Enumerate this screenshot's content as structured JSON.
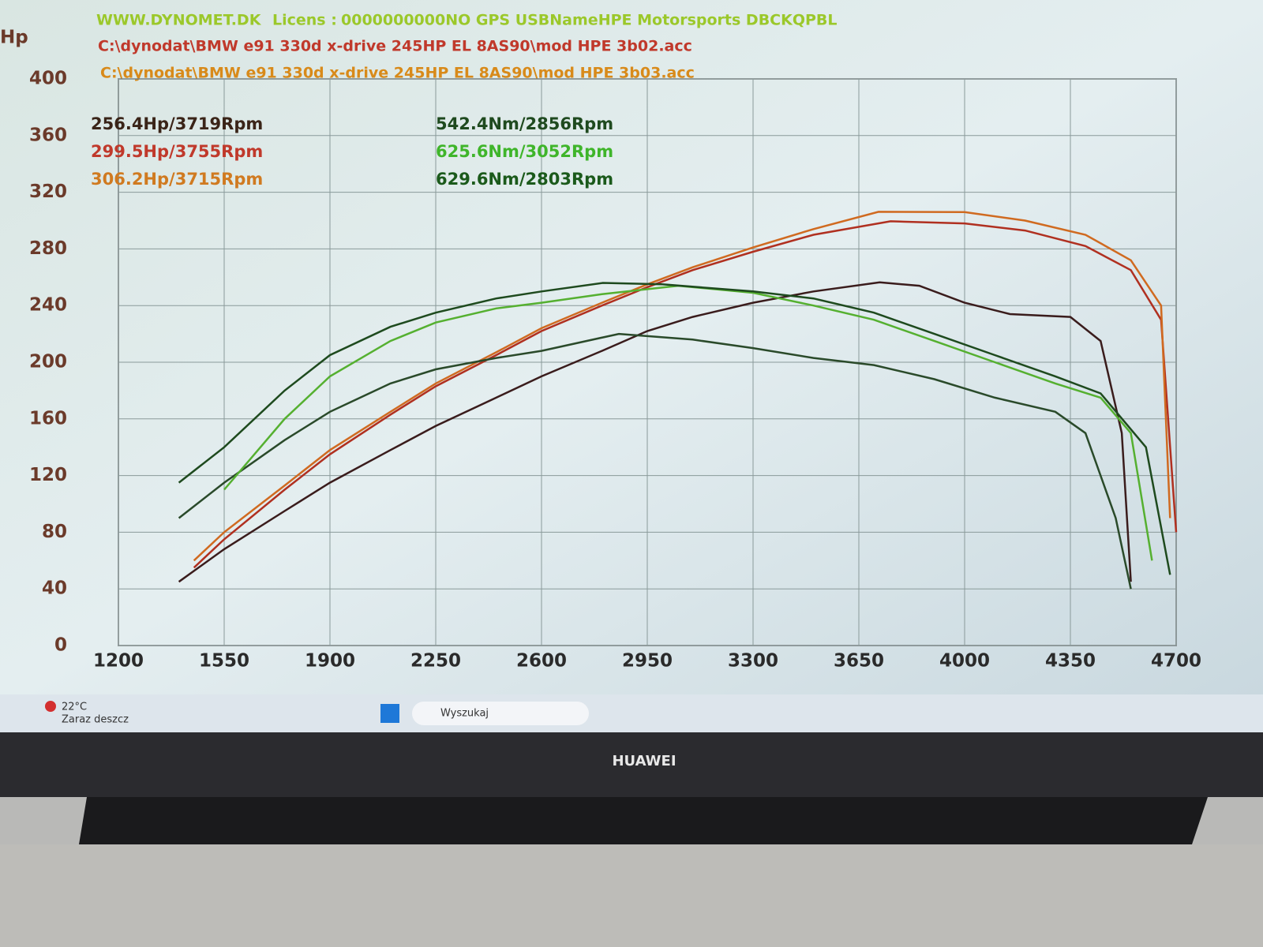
{
  "header": {
    "site": "WWW.DYNOMET.DK",
    "license_label": "Licens :",
    "license": "0000000000NO GPS USBNameHPE Motorsports  DBCKQPBL",
    "files": [
      "C:\\dynodat\\BMW e91 330d x-drive 245HP EL 8AS90\\mod HPE 3b02.acc",
      "C:\\dynodat\\BMW e91 330d x-drive 245HP EL 8AS90\\mod HPE 3b03.acc"
    ]
  },
  "chart_data": {
    "type": "line",
    "y_label": "Hp",
    "xlim": [
      1200,
      4700
    ],
    "ylim": [
      0,
      400
    ],
    "xticks": [
      1200,
      1550,
      1900,
      2250,
      2600,
      2950,
      3300,
      3650,
      4000,
      4350,
      4700
    ],
    "yticks": [
      0,
      40,
      80,
      120,
      160,
      200,
      240,
      280,
      320,
      360,
      400
    ],
    "grid": true,
    "series": [
      {
        "name": "256.4Hp/3719Rpm",
        "color": "#3a1c1c",
        "label_color": "#3a2418",
        "x": [
          1400,
          1550,
          1750,
          1900,
          2100,
          2250,
          2450,
          2600,
          2800,
          2950,
          3100,
          3300,
          3500,
          3719,
          3850,
          4000,
          4150,
          4350,
          4450,
          4520,
          4550
        ],
        "values": [
          45,
          68,
          95,
          115,
          138,
          155,
          175,
          190,
          208,
          222,
          232,
          242,
          250,
          256.4,
          254,
          242,
          234,
          232,
          215,
          150,
          45
        ]
      },
      {
        "name": "299.5Hp/3755Rpm",
        "color": "#b03020",
        "label_color": "#c0392b",
        "x": [
          1450,
          1550,
          1750,
          1900,
          2100,
          2250,
          2450,
          2600,
          2800,
          2950,
          3100,
          3300,
          3500,
          3755,
          4000,
          4200,
          4400,
          4550,
          4650,
          4700
        ],
        "values": [
          55,
          75,
          110,
          135,
          163,
          183,
          205,
          222,
          240,
          253,
          265,
          278,
          290,
          299.5,
          298,
          293,
          282,
          265,
          230,
          80
        ]
      },
      {
        "name": "306.2Hp/3715Rpm",
        "color": "#d06a20",
        "label_color": "#d07a20",
        "x": [
          1450,
          1550,
          1750,
          1900,
          2100,
          2250,
          2450,
          2600,
          2800,
          2950,
          3100,
          3300,
          3500,
          3715,
          4000,
          4200,
          4400,
          4550,
          4650,
          4680
        ],
        "values": [
          60,
          80,
          113,
          138,
          165,
          185,
          207,
          224,
          242,
          255,
          267,
          281,
          294,
          306.2,
          306,
          300,
          290,
          272,
          240,
          90
        ]
      },
      {
        "name": "542.4Nm/2856Rpm",
        "color": "#2a4a2a",
        "label_color": "#1f4a1f",
        "x": [
          1400,
          1550,
          1750,
          1900,
          2100,
          2250,
          2450,
          2600,
          2856,
          3100,
          3300,
          3500,
          3700,
          3900,
          4100,
          4300,
          4400,
          4500,
          4550
        ],
        "values": [
          90,
          115,
          145,
          165,
          185,
          195,
          203,
          208,
          220,
          216,
          210,
          203,
          198,
          188,
          175,
          165,
          150,
          90,
          40
        ]
      },
      {
        "name": "625.6Nm/3052Rpm",
        "color": "#55b030",
        "label_color": "#3fb52a",
        "x": [
          1550,
          1750,
          1900,
          2100,
          2250,
          2450,
          2600,
          2800,
          3052,
          3300,
          3500,
          3700,
          3900,
          4100,
          4300,
          4450,
          4550,
          4620
        ],
        "values": [
          110,
          160,
          190,
          215,
          228,
          238,
          242,
          248,
          254,
          249,
          240,
          230,
          215,
          200,
          185,
          175,
          150,
          60
        ]
      },
      {
        "name": "629.6Nm/2803Rpm",
        "color": "#1e4a1e",
        "label_color": "#1b5a1b",
        "x": [
          1400,
          1550,
          1750,
          1900,
          2100,
          2250,
          2450,
          2600,
          2803,
          3000,
          3300,
          3500,
          3700,
          3900,
          4100,
          4300,
          4450,
          4600,
          4680
        ],
        "values": [
          115,
          140,
          180,
          205,
          225,
          235,
          245,
          250,
          256,
          255,
          250,
          245,
          235,
          220,
          205,
          190,
          178,
          140,
          50
        ]
      }
    ]
  },
  "taskbar": {
    "temperature": "22°C",
    "weather": "Zaraz deszcz",
    "search": "Wyszukaj"
  },
  "brand": "HUAWEI"
}
